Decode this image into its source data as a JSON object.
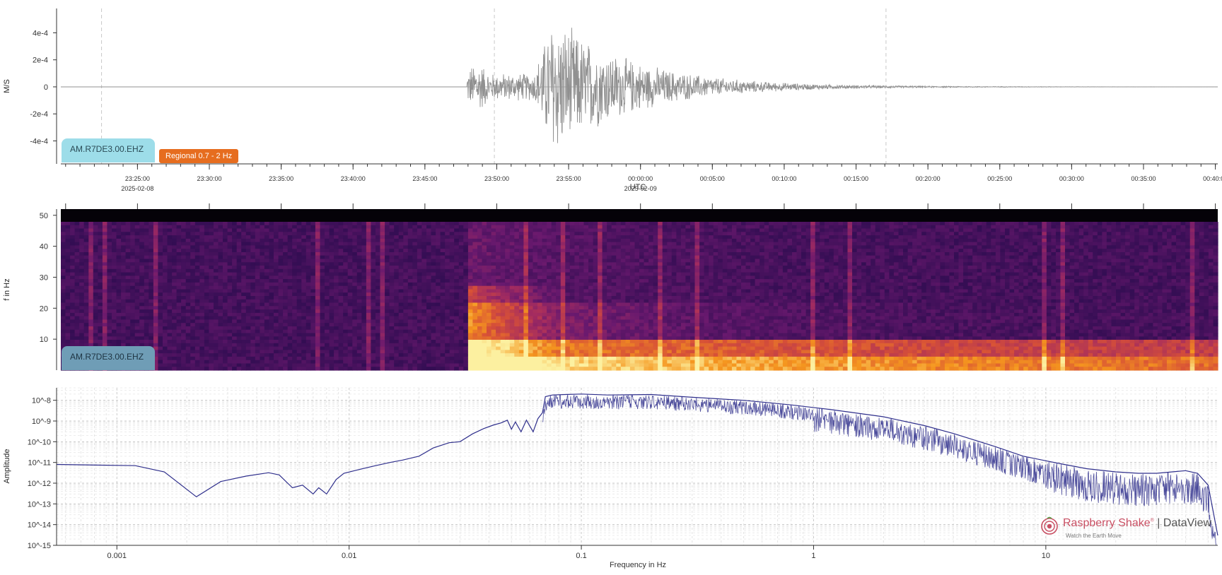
{
  "chart_data": [
    {
      "type": "line",
      "panel": "seismogram",
      "ylabel": "M/S",
      "xlabel": "UTC",
      "ylim": [
        -0.00057,
        0.00058
      ],
      "yticks": [
        "4e-4",
        "2e-4",
        "0",
        "-2e-4",
        "-4e-4"
      ],
      "ytick_values": [
        0.0004,
        0.0002,
        0,
        -0.0002,
        -0.0004
      ],
      "xticks": [
        "23:25:00",
        "23:30:00",
        "23:35:00",
        "23:40:00",
        "23:45:00",
        "23:50:00",
        "23:55:00",
        "00:00:00",
        "00:05:00",
        "00:10:00",
        "00:15:00",
        "00:20:00",
        "00:25:00",
        "00:30:00",
        "00:35:00",
        "00:40:00"
      ],
      "date_labels": [
        "2025-02-08",
        "2025-02-09"
      ],
      "x_range": [
        "2025-02-08 23:19:40",
        "2025-02-09 00:40:10"
      ],
      "dashed_markers": [
        "2025-02-08 23:22:30",
        "2025-02-08 23:49:50",
        "2025-02-09 00:17:05"
      ],
      "signal": {
        "onset": "2025-02-08 23:47:55",
        "peak": "2025-02-08 23:53:55",
        "peak_amplitude": 0.00057,
        "initial_amplitude": 0.0002,
        "coda_end": "2025-02-09 00:40:00"
      },
      "grid": false,
      "color": "#909090"
    },
    {
      "type": "heatmap",
      "panel": "spectrogram",
      "ylabel": "f in Hz",
      "ylim": [
        0,
        52
      ],
      "yticks": [
        "50",
        "40",
        "30",
        "20",
        "10"
      ],
      "ytick_values": [
        50,
        40,
        30,
        20,
        10
      ],
      "colormap": "inferno",
      "event_onset": "2025-02-08 23:47:55",
      "energy_band_hz": [
        0,
        12
      ]
    },
    {
      "type": "line",
      "panel": "spectrum",
      "xlabel": "Frequency in Hz",
      "ylabel": "Amplitude",
      "xscale": "log",
      "yscale": "log",
      "xlim": [
        0.00055,
        55
      ],
      "ylim": [
        1e-15,
        4e-08
      ],
      "xticks": [
        "0.001",
        "0.01",
        "0.1",
        "1",
        "10"
      ],
      "xtick_values": [
        0.001,
        0.01,
        0.1,
        1,
        10
      ],
      "yticks": [
        "10^-8",
        "10^-9",
        "10^-10",
        "10^-11",
        "10^-12",
        "10^-13",
        "10^-14",
        "10^-15"
      ],
      "ytick_exponents": [
        -8,
        -9,
        -10,
        -11,
        -12,
        -13,
        -14,
        -15
      ],
      "grid": true,
      "color": "#2f2f8c",
      "x": [
        0.00055,
        0.0012,
        0.0016,
        0.0022,
        0.0028,
        0.0036,
        0.0045,
        0.005,
        0.0057,
        0.0063,
        0.007,
        0.0074,
        0.008,
        0.0088,
        0.0095,
        0.011,
        0.013,
        0.015,
        0.017,
        0.02,
        0.023,
        0.027,
        0.03,
        0.034,
        0.038,
        0.042,
        0.045,
        0.048,
        0.05,
        0.052,
        0.055,
        0.058,
        0.062,
        0.065,
        0.068,
        0.07,
        0.075,
        0.085,
        0.1,
        0.13,
        0.2,
        0.3,
        0.5,
        0.8,
        1.2,
        2,
        3,
        4,
        6,
        8,
        10,
        12,
        15,
        20,
        25,
        30,
        35,
        40,
        45,
        50,
        55
      ],
      "y": [
        8e-12,
        7e-12,
        3.5e-12,
        2.2e-13,
        1.2e-12,
        2.2e-12,
        3.2e-12,
        2.5e-12,
        6e-13,
        8e-13,
        3e-13,
        6e-13,
        3e-13,
        1.5e-12,
        3e-12,
        4.5e-12,
        7e-12,
        1e-11,
        1.3e-11,
        2e-11,
        5e-11,
        9e-11,
        1e-10,
        2.4e-10,
        4.3e-10,
        6.5e-10,
        8e-10,
        1.1e-09,
        4e-10,
        9e-10,
        3e-10,
        1.1e-09,
        3e-10,
        1.3e-09,
        2.5e-09,
        1.5e-08,
        1.8e-08,
        1.9e-08,
        2e-08,
        1.8e-08,
        1.9e-08,
        1.4e-08,
        1e-08,
        6e-09,
        3.5e-09,
        1.6e-09,
        6e-10,
        2.5e-10,
        6e-11,
        2e-11,
        1.2e-11,
        8e-12,
        5e-12,
        3.5e-12,
        3e-12,
        3e-12,
        3.5e-12,
        4e-12,
        3e-12,
        8e-13,
        3e-15
      ]
    }
  ],
  "labels": {
    "station": "AM.R7DE3.00.EHZ",
    "filter": "Regional 0.7 - 2 Hz",
    "spectrogram_station": "AM.R7DE3.00.EHZ"
  },
  "branding": {
    "name": "Raspberry Shake",
    "reg": "®",
    "divider": "|",
    "product": "DataView",
    "tagline": "Watch the Earth Move",
    "brand_color": "#c94f63"
  }
}
